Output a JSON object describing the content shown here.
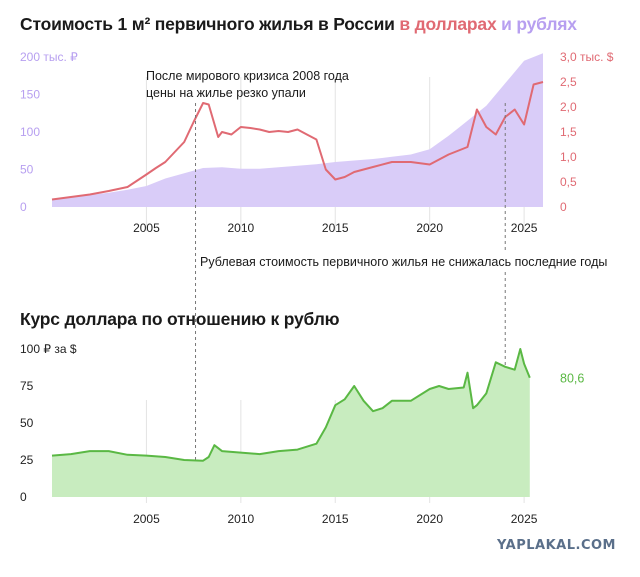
{
  "header": {
    "title_main": "Стоимость 1 м² первичного жилья в России ",
    "title_usd": "в долларах",
    "title_and": " и ",
    "title_rub": "рублях"
  },
  "section2": {
    "title": "Курс доллара по отношению к рублю"
  },
  "watermark": "YAPLAKAL.COM",
  "colors": {
    "usd": "#e06a73",
    "rub_area": "#d9ccf8",
    "rub_text": "#b79ff0",
    "fx_line": "#5ab844",
    "fx_area": "#c8ecbf",
    "axis_text": "#333333"
  },
  "chart_data": [
    {
      "type": "area",
      "title": "Стоимость 1 м² первичного жилья в России в долларах и рублях",
      "x_ticks": [
        "2005",
        "2010",
        "2015",
        "2020",
        "2025"
      ],
      "y_left": {
        "ticks": [
          "0",
          "50",
          "100",
          "150",
          "200 тыс. ₽"
        ],
        "ylim": [
          0,
          200
        ],
        "unit": "тыс. ₽"
      },
      "y_right": {
        "ticks": [
          "0",
          "0,5",
          "1,0",
          "1,5",
          "2,0",
          "2,5",
          "3,0 тыс. $"
        ],
        "ylim": [
          0,
          3.0
        ],
        "unit": "тыс. $"
      },
      "annotations": [
        {
          "text_lines": [
            "После мирового кризиса 2008 года",
            "цены на жилье резко упали"
          ],
          "x": 2007.6
        },
        {
          "text": "Рублевая стоимость первичного жилья не снижалась последние годы",
          "x": 2024.0
        }
      ],
      "series": [
        {
          "axis": "left",
          "kind": "area",
          "points": [
            [
              2000,
              10
            ],
            [
              2001,
              13
            ],
            [
              2002,
              16
            ],
            [
              2003,
              19
            ],
            [
              2004,
              23
            ],
            [
              2005,
              28
            ],
            [
              2006,
              38
            ],
            [
              2007,
              45
            ],
            [
              2008,
              52
            ],
            [
              2009,
              53
            ],
            [
              2010,
              51
            ],
            [
              2011,
              51
            ],
            [
              2012,
              53
            ],
            [
              2013,
              55
            ],
            [
              2014,
              57
            ],
            [
              2015,
              60
            ],
            [
              2016,
              62
            ],
            [
              2017,
              64
            ],
            [
              2018,
              67
            ],
            [
              2019,
              70
            ],
            [
              2020,
              77
            ],
            [
              2021,
              95
            ],
            [
              2022,
              115
            ],
            [
              2023,
              135
            ],
            [
              2024,
              165
            ],
            [
              2024.5,
              180
            ],
            [
              2025,
              195
            ],
            [
              2026,
              205
            ]
          ]
        },
        {
          "axis": "right",
          "kind": "line",
          "points": [
            [
              2000,
              0.15
            ],
            [
              2001,
              0.2
            ],
            [
              2002,
              0.25
            ],
            [
              2003,
              0.32
            ],
            [
              2004,
              0.4
            ],
            [
              2005,
              0.65
            ],
            [
              2005.5,
              0.78
            ],
            [
              2006,
              0.9
            ],
            [
              2007,
              1.3
            ],
            [
              2007.5,
              1.7
            ],
            [
              2008,
              2.08
            ],
            [
              2008.3,
              2.05
            ],
            [
              2008.8,
              1.4
            ],
            [
              2009,
              1.5
            ],
            [
              2009.5,
              1.45
            ],
            [
              2010,
              1.6
            ],
            [
              2010.5,
              1.58
            ],
            [
              2011,
              1.55
            ],
            [
              2011.5,
              1.5
            ],
            [
              2012,
              1.52
            ],
            [
              2012.5,
              1.5
            ],
            [
              2013,
              1.55
            ],
            [
              2013.5,
              1.45
            ],
            [
              2014,
              1.35
            ],
            [
              2014.5,
              0.75
            ],
            [
              2015,
              0.55
            ],
            [
              2015.5,
              0.6
            ],
            [
              2016,
              0.7
            ],
            [
              2017,
              0.8
            ],
            [
              2018,
              0.9
            ],
            [
              2019,
              0.9
            ],
            [
              2020,
              0.85
            ],
            [
              2021,
              1.05
            ],
            [
              2022,
              1.2
            ],
            [
              2022.5,
              1.95
            ],
            [
              2023,
              1.6
            ],
            [
              2023.5,
              1.45
            ],
            [
              2024,
              1.8
            ],
            [
              2024.5,
              1.95
            ],
            [
              2025,
              1.65
            ],
            [
              2025.5,
              2.45
            ],
            [
              2026,
              2.5
            ]
          ]
        }
      ]
    },
    {
      "type": "area",
      "title": "Курс доллара по отношению к рублю",
      "y_ticks": [
        "0",
        "25",
        "50",
        "75",
        "100 ₽ за $"
      ],
      "ylim": [
        0,
        100
      ],
      "x_ticks": [
        "2005",
        "2010",
        "2015",
        "2020",
        "2025"
      ],
      "last_value_label": "80,6",
      "series": [
        {
          "kind": "area",
          "points": [
            [
              2000,
              28
            ],
            [
              2001,
              29
            ],
            [
              2002,
              31
            ],
            [
              2003,
              31
            ],
            [
              2004,
              28.5
            ],
            [
              2005,
              28
            ],
            [
              2006,
              27
            ],
            [
              2007,
              25
            ],
            [
              2008,
              24.5
            ],
            [
              2008.3,
              27
            ],
            [
              2008.6,
              35
            ],
            [
              2009,
              31
            ],
            [
              2010,
              30
            ],
            [
              2011,
              29
            ],
            [
              2012,
              31
            ],
            [
              2013,
              32
            ],
            [
              2014,
              36
            ],
            [
              2014.5,
              47
            ],
            [
              2015,
              62
            ],
            [
              2015.5,
              66
            ],
            [
              2016,
              75
            ],
            [
              2016.5,
              65
            ],
            [
              2017,
              58
            ],
            [
              2017.5,
              60
            ],
            [
              2018,
              65
            ],
            [
              2019,
              65
            ],
            [
              2020,
              73
            ],
            [
              2020.5,
              75
            ],
            [
              2021,
              73
            ],
            [
              2021.8,
              74
            ],
            [
              2022,
              84
            ],
            [
              2022.3,
              60
            ],
            [
              2022.5,
              62
            ],
            [
              2023,
              70
            ],
            [
              2023.5,
              91
            ],
            [
              2024,
              88
            ],
            [
              2024.5,
              86
            ],
            [
              2024.8,
              100
            ],
            [
              2025,
              90
            ],
            [
              2025.3,
              80.6
            ]
          ]
        }
      ]
    }
  ]
}
